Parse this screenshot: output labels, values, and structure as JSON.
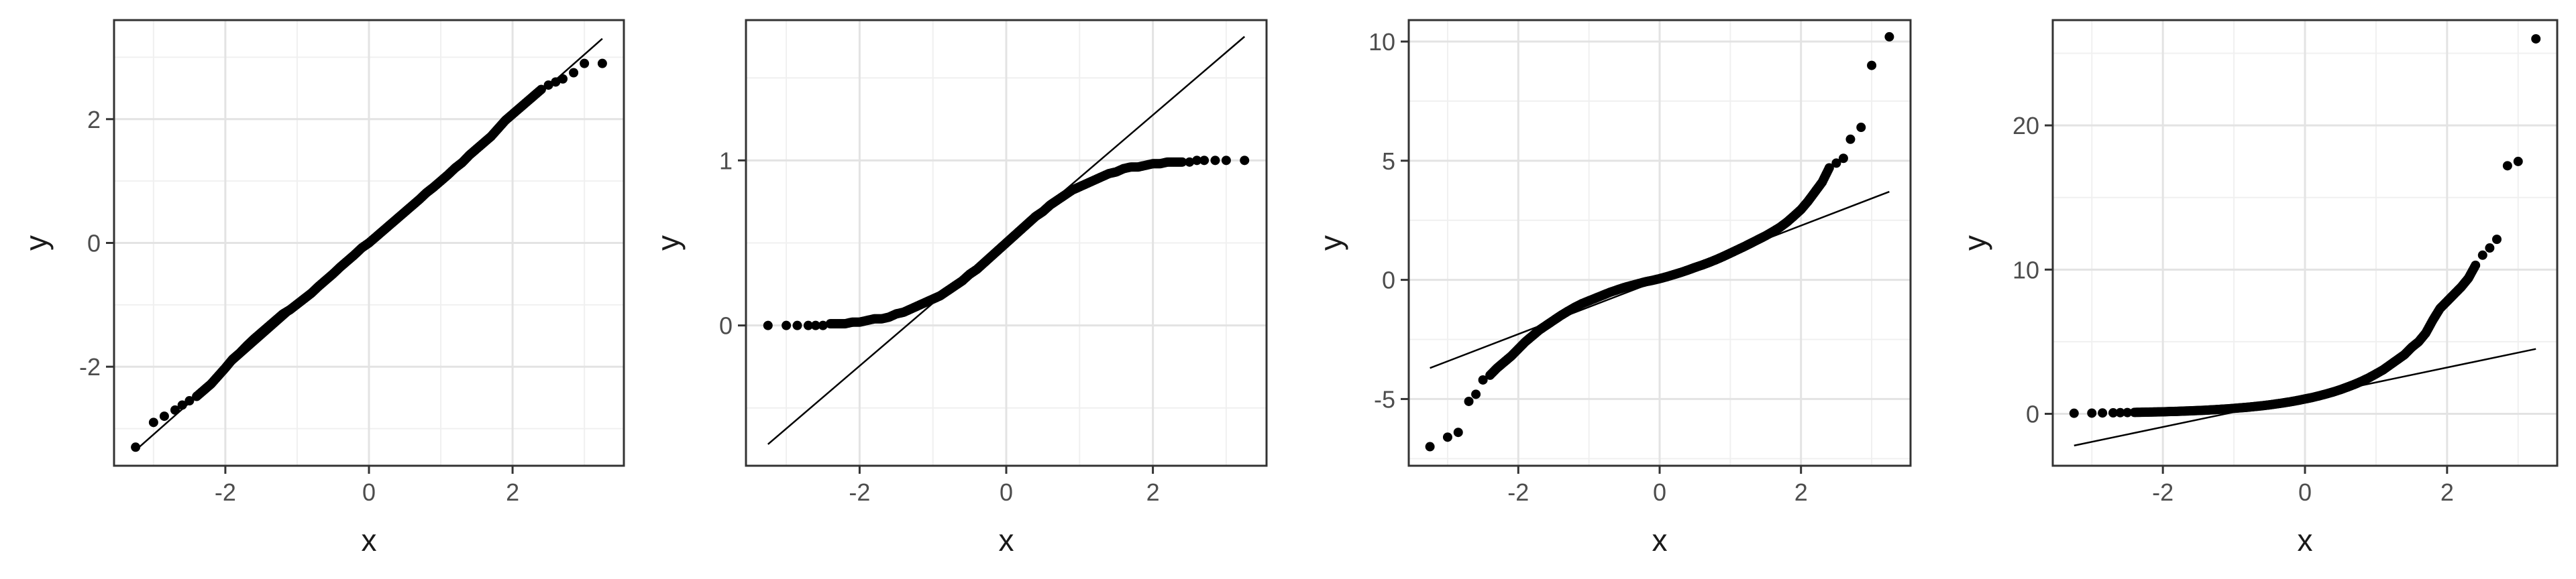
{
  "chart_data": [
    {
      "type": "scatter",
      "title": "",
      "xlabel": "x",
      "ylabel": "y",
      "xlim": [
        -3.55,
        3.55
      ],
      "ylim": [
        -3.6,
        3.6
      ],
      "x_ticks": [
        -2,
        0,
        2
      ],
      "x_tick_labels": [
        "-2",
        "0",
        "2"
      ],
      "y_ticks": [
        -2,
        0,
        2
      ],
      "y_tick_labels": [
        "-2",
        "0",
        "2"
      ],
      "grid": true,
      "reference_line": {
        "x": [
          -3.25,
          3.25
        ],
        "y": [
          -3.35,
          3.3
        ]
      },
      "points": {
        "x": [
          -3.25,
          -3.0,
          -2.85,
          -2.7,
          -2.6,
          -2.5,
          -2.4,
          -2.3,
          -2.2,
          -2.1,
          -2.0,
          -1.9,
          -1.8,
          -1.7,
          -1.6,
          -1.5,
          -1.4,
          -1.3,
          -1.2,
          -1.1,
          -1.0,
          -0.9,
          -0.8,
          -0.7,
          -0.6,
          -0.5,
          -0.4,
          -0.3,
          -0.2,
          -0.1,
          0.0,
          0.1,
          0.2,
          0.3,
          0.4,
          0.5,
          0.6,
          0.7,
          0.8,
          0.9,
          1.0,
          1.1,
          1.2,
          1.3,
          1.4,
          1.5,
          1.6,
          1.7,
          1.8,
          1.9,
          2.0,
          2.1,
          2.2,
          2.3,
          2.4,
          2.5,
          2.6,
          2.7,
          2.85,
          3.0,
          3.25
        ],
        "y": [
          -3.3,
          -2.9,
          -2.8,
          -2.7,
          -2.62,
          -2.55,
          -2.48,
          -2.38,
          -2.28,
          -2.15,
          -2.02,
          -1.88,
          -1.78,
          -1.66,
          -1.55,
          -1.45,
          -1.35,
          -1.25,
          -1.15,
          -1.08,
          -0.99,
          -0.9,
          -0.81,
          -0.7,
          -0.6,
          -0.5,
          -0.39,
          -0.29,
          -0.19,
          -0.08,
          0.0,
          0.1,
          0.2,
          0.3,
          0.4,
          0.5,
          0.6,
          0.7,
          0.81,
          0.9,
          1.0,
          1.1,
          1.21,
          1.3,
          1.42,
          1.52,
          1.62,
          1.72,
          1.85,
          1.98,
          2.08,
          2.18,
          2.28,
          2.38,
          2.48,
          2.55,
          2.6,
          2.65,
          2.75,
          2.9,
          2.9
        ]
      }
    },
    {
      "type": "scatter",
      "title": "",
      "xlabel": "x",
      "ylabel": "y",
      "xlim": [
        -3.55,
        3.55
      ],
      "ylim": [
        -0.85,
        1.85
      ],
      "x_ticks": [
        -2,
        0,
        2
      ],
      "x_tick_labels": [
        "-2",
        "0",
        "2"
      ],
      "y_ticks": [
        0,
        1
      ],
      "y_tick_labels": [
        "0",
        "1"
      ],
      "grid": true,
      "reference_line": {
        "x": [
          -3.25,
          3.25
        ],
        "y": [
          -0.72,
          1.75
        ]
      },
      "points": {
        "x": [
          -3.25,
          -3.0,
          -2.85,
          -2.7,
          -2.6,
          -2.5,
          -2.4,
          -2.3,
          -2.2,
          -2.1,
          -2.0,
          -1.9,
          -1.8,
          -1.7,
          -1.6,
          -1.5,
          -1.4,
          -1.3,
          -1.2,
          -1.1,
          -1.0,
          -0.9,
          -0.8,
          -0.7,
          -0.6,
          -0.5,
          -0.4,
          -0.3,
          -0.2,
          -0.1,
          0.0,
          0.1,
          0.2,
          0.3,
          0.4,
          0.5,
          0.6,
          0.7,
          0.8,
          0.9,
          1.0,
          1.1,
          1.2,
          1.3,
          1.4,
          1.5,
          1.6,
          1.7,
          1.8,
          1.9,
          2.0,
          2.1,
          2.2,
          2.3,
          2.4,
          2.5,
          2.6,
          2.7,
          2.85,
          3.0,
          3.25
        ],
        "y": [
          0.0,
          0.0,
          0.0,
          0.0,
          0.0,
          0.0,
          0.01,
          0.01,
          0.01,
          0.02,
          0.02,
          0.03,
          0.04,
          0.04,
          0.05,
          0.07,
          0.08,
          0.1,
          0.12,
          0.14,
          0.16,
          0.18,
          0.21,
          0.24,
          0.27,
          0.31,
          0.34,
          0.38,
          0.42,
          0.46,
          0.5,
          0.54,
          0.58,
          0.62,
          0.66,
          0.69,
          0.73,
          0.76,
          0.79,
          0.82,
          0.84,
          0.86,
          0.88,
          0.9,
          0.92,
          0.93,
          0.95,
          0.96,
          0.96,
          0.97,
          0.98,
          0.98,
          0.99,
          0.99,
          0.99,
          0.99,
          1.0,
          1.0,
          1.0,
          1.0,
          1.0
        ]
      }
    },
    {
      "type": "scatter",
      "title": "",
      "xlabel": "x",
      "ylabel": "y",
      "xlim": [
        -3.55,
        3.55
      ],
      "ylim": [
        -7.8,
        10.9
      ],
      "x_ticks": [
        -2,
        0,
        2
      ],
      "x_tick_labels": [
        "-2",
        "0",
        "2"
      ],
      "y_ticks": [
        -5,
        0,
        5,
        10
      ],
      "y_tick_labels": [
        "-5",
        "0",
        "5",
        "10"
      ],
      "grid": true,
      "reference_line": {
        "x": [
          -3.25,
          3.25
        ],
        "y": [
          -3.7,
          3.7
        ]
      },
      "points": {
        "x": [
          -3.25,
          -3.0,
          -2.85,
          -2.7,
          -2.6,
          -2.5,
          -2.4,
          -2.3,
          -2.2,
          -2.1,
          -2.0,
          -1.9,
          -1.8,
          -1.7,
          -1.6,
          -1.5,
          -1.4,
          -1.3,
          -1.2,
          -1.1,
          -1.0,
          -0.9,
          -0.8,
          -0.7,
          -0.6,
          -0.5,
          -0.4,
          -0.3,
          -0.2,
          -0.1,
          0.0,
          0.1,
          0.2,
          0.3,
          0.4,
          0.5,
          0.6,
          0.7,
          0.8,
          0.9,
          1.0,
          1.1,
          1.2,
          1.3,
          1.4,
          1.5,
          1.6,
          1.7,
          1.8,
          1.9,
          2.0,
          2.1,
          2.2,
          2.3,
          2.4,
          2.5,
          2.6,
          2.7,
          2.85,
          3.0,
          3.25
        ],
        "y": [
          -7.0,
          -6.6,
          -6.4,
          -5.1,
          -4.8,
          -4.2,
          -4.0,
          -3.7,
          -3.45,
          -3.2,
          -2.9,
          -2.6,
          -2.35,
          -2.1,
          -1.9,
          -1.7,
          -1.5,
          -1.32,
          -1.15,
          -1.0,
          -0.88,
          -0.76,
          -0.64,
          -0.52,
          -0.42,
          -0.32,
          -0.24,
          -0.16,
          -0.08,
          -0.02,
          0.05,
          0.13,
          0.22,
          0.31,
          0.41,
          0.52,
          0.62,
          0.73,
          0.85,
          0.98,
          1.12,
          1.26,
          1.4,
          1.55,
          1.7,
          1.85,
          2.02,
          2.2,
          2.42,
          2.68,
          2.95,
          3.3,
          3.7,
          4.1,
          4.7,
          4.9,
          5.1,
          5.9,
          6.4,
          9.0,
          10.2
        ]
      }
    },
    {
      "type": "scatter",
      "title": "",
      "xlabel": "x",
      "ylabel": "y",
      "xlim": [
        -3.55,
        3.55
      ],
      "ylim": [
        -3.6,
        27.3
      ],
      "x_ticks": [
        -2,
        0,
        2
      ],
      "x_tick_labels": [
        "-2",
        "0",
        "2"
      ],
      "y_ticks": [
        0,
        10,
        20
      ],
      "y_tick_labels": [
        "0",
        "10",
        "20"
      ],
      "grid": true,
      "reference_line": {
        "x": [
          -3.25,
          3.25
        ],
        "y": [
          -2.2,
          4.5
        ]
      },
      "points": {
        "x": [
          -3.25,
          -3.0,
          -2.85,
          -2.7,
          -2.6,
          -2.5,
          -2.4,
          -2.3,
          -2.2,
          -2.1,
          -2.0,
          -1.9,
          -1.8,
          -1.7,
          -1.6,
          -1.5,
          -1.4,
          -1.3,
          -1.2,
          -1.1,
          -1.0,
          -0.9,
          -0.8,
          -0.7,
          -0.6,
          -0.5,
          -0.4,
          -0.3,
          -0.2,
          -0.1,
          0.0,
          0.1,
          0.2,
          0.3,
          0.4,
          0.5,
          0.6,
          0.7,
          0.8,
          0.9,
          1.0,
          1.1,
          1.2,
          1.3,
          1.4,
          1.5,
          1.6,
          1.7,
          1.8,
          1.9,
          2.0,
          2.1,
          2.2,
          2.3,
          2.4,
          2.5,
          2.6,
          2.7,
          2.85,
          3.0,
          3.25
        ],
        "y": [
          0.04,
          0.05,
          0.06,
          0.07,
          0.08,
          0.09,
          0.1,
          0.11,
          0.12,
          0.13,
          0.14,
          0.16,
          0.17,
          0.19,
          0.21,
          0.23,
          0.25,
          0.28,
          0.31,
          0.34,
          0.38,
          0.42,
          0.46,
          0.51,
          0.56,
          0.62,
          0.69,
          0.76,
          0.84,
          0.93,
          1.03,
          1.13,
          1.25,
          1.38,
          1.52,
          1.68,
          1.86,
          2.05,
          2.26,
          2.5,
          2.77,
          3.05,
          3.4,
          3.75,
          4.1,
          4.6,
          5.0,
          5.6,
          6.5,
          7.3,
          7.8,
          8.3,
          8.8,
          9.4,
          10.3,
          11.0,
          11.5,
          12.1,
          17.2,
          17.5,
          26.0
        ]
      }
    }
  ]
}
